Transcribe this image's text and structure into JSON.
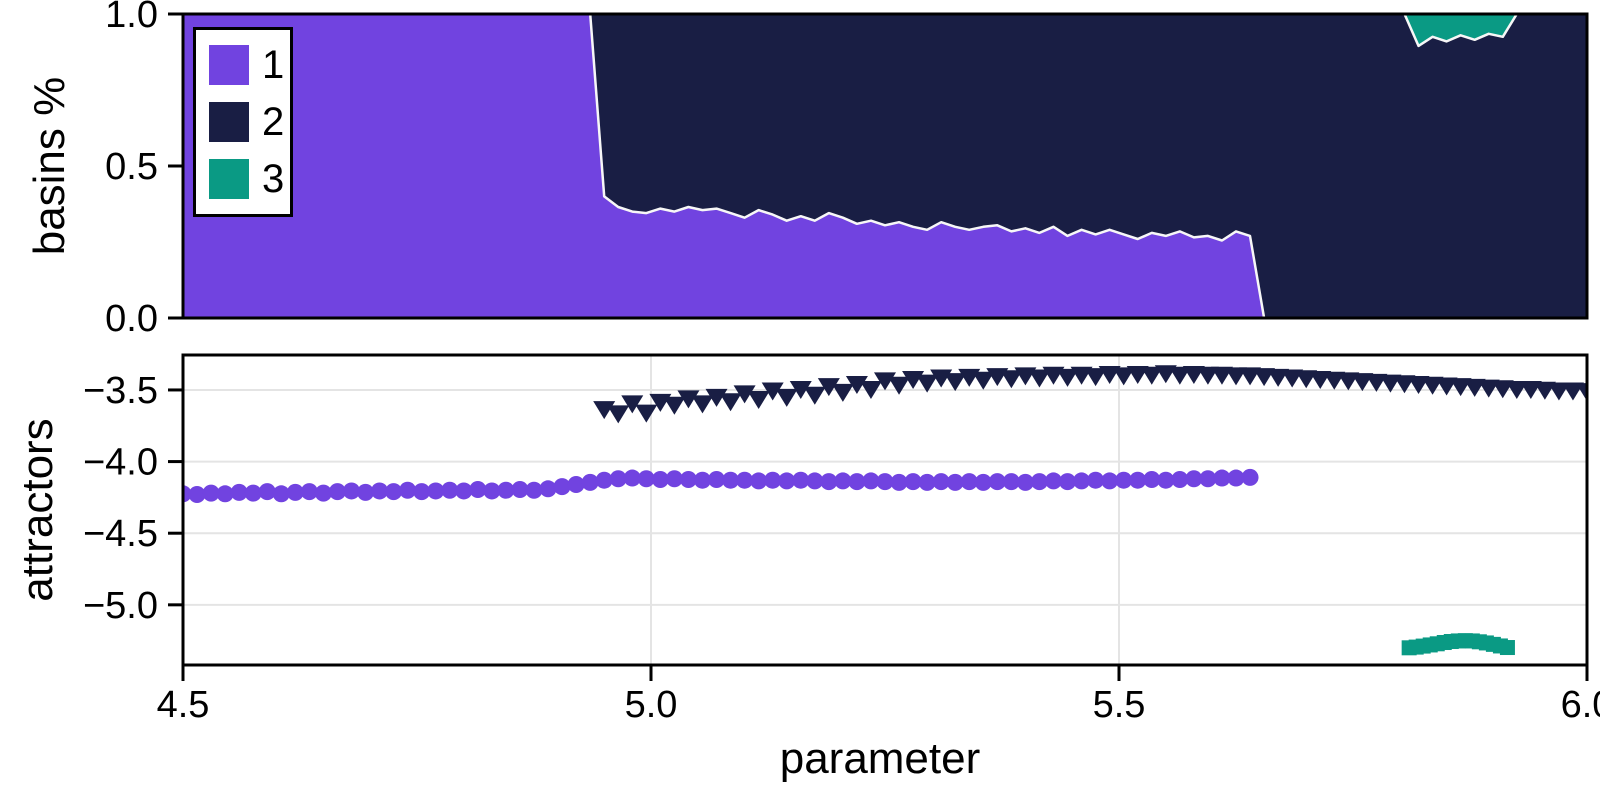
{
  "figure": {
    "background": "#ffffff"
  },
  "palette": {
    "series1": "#7143E0",
    "series2": "#191E44",
    "series3": "#0A9A84",
    "boundary_stroke": "#f7f7f7",
    "grid": "#e4e4e4",
    "spine": "#000000"
  },
  "legend": {
    "position": "top-left",
    "items": [
      {
        "label": "1",
        "color": "#7143E0"
      },
      {
        "label": "2",
        "color": "#191E44"
      },
      {
        "label": "3",
        "color": "#0A9A84"
      }
    ]
  },
  "chart_data": [
    {
      "type": "area",
      "subtype": "stacked-basin-fractions",
      "title": "",
      "xlabel": "",
      "ylabel": "basins %",
      "xlim": [
        4.5,
        6.0
      ],
      "ylim": [
        0,
        1
      ],
      "grid": false,
      "yticks": {
        "values": [
          0,
          0.5,
          1
        ],
        "labels": [
          "0.0",
          "0.5",
          "1.0"
        ]
      },
      "x_linspace": {
        "start": 4.5,
        "step": 0.015,
        "count": 101
      },
      "series": [
        {
          "name": "1",
          "color": "#7143E0",
          "anchor": "bottom",
          "fraction": [
            1,
            1,
            1,
            1,
            1,
            1,
            1,
            1,
            1,
            1,
            1,
            1,
            1,
            1,
            1,
            1,
            1,
            1,
            1,
            1,
            1,
            1,
            1,
            1,
            1,
            1,
            1,
            1,
            1,
            1,
            0.4,
            0.365,
            0.35,
            0.345,
            0.36,
            0.35,
            0.365,
            0.355,
            0.36,
            0.345,
            0.33,
            0.355,
            0.34,
            0.32,
            0.335,
            0.32,
            0.345,
            0.33,
            0.31,
            0.32,
            0.305,
            0.315,
            0.3,
            0.29,
            0.315,
            0.3,
            0.29,
            0.3,
            0.305,
            0.285,
            0.295,
            0.28,
            0.3,
            0.27,
            0.29,
            0.275,
            0.29,
            0.275,
            0.26,
            0.28,
            0.27,
            0.285,
            0.265,
            0.27,
            0.255,
            0.285,
            0.27,
            0,
            0,
            0,
            0,
            0,
            0,
            0,
            0,
            0,
            0,
            0,
            0,
            0,
            0,
            0,
            0,
            0,
            0,
            0,
            0,
            0,
            0,
            0,
            0
          ]
        },
        {
          "name": "2",
          "color": "#191E44",
          "anchor": "fill-remainder"
        },
        {
          "name": "3",
          "color": "#0A9A84",
          "anchor": "top",
          "x_linspace": {
            "start": 5.805,
            "step": 0.015,
            "count": 9
          },
          "fraction": [
            0,
            0.105,
            0.075,
            0.09,
            0.07,
            0.085,
            0.065,
            0.075,
            0
          ]
        }
      ]
    },
    {
      "type": "scatter",
      "title": "",
      "xlabel": "parameter",
      "ylabel": "attractors",
      "xlim": [
        4.5,
        6.0
      ],
      "ylim": [
        -5.42,
        -3.256
      ],
      "grid": true,
      "xticks": {
        "values": [
          4.5,
          5.0,
          5.5,
          6.0
        ],
        "labels": [
          "4.5",
          "5.0",
          "5.5",
          "6.0"
        ]
      },
      "yticks": {
        "values": [
          -3.5,
          -4.0,
          -4.5,
          -5.0
        ],
        "labels": [
          "−3.5",
          "−4.0",
          "−4.5",
          "−5.0"
        ]
      },
      "series": [
        {
          "name": "1",
          "marker": "circle",
          "color": "#7143E0",
          "x_linspace": {
            "start": 4.5,
            "step": 0.015,
            "count": 77
          },
          "y": [
            -4.225,
            -4.23,
            -4.22,
            -4.225,
            -4.215,
            -4.22,
            -4.21,
            -4.225,
            -4.215,
            -4.21,
            -4.22,
            -4.21,
            -4.205,
            -4.215,
            -4.205,
            -4.21,
            -4.2,
            -4.21,
            -4.205,
            -4.2,
            -4.205,
            -4.195,
            -4.205,
            -4.2,
            -4.195,
            -4.2,
            -4.19,
            -4.175,
            -4.16,
            -4.145,
            -4.13,
            -4.12,
            -4.115,
            -4.12,
            -4.125,
            -4.12,
            -4.125,
            -4.13,
            -4.125,
            -4.13,
            -4.13,
            -4.135,
            -4.13,
            -4.135,
            -4.13,
            -4.135,
            -4.14,
            -4.135,
            -4.14,
            -4.135,
            -4.14,
            -4.145,
            -4.14,
            -4.145,
            -4.14,
            -4.145,
            -4.14,
            -4.145,
            -4.14,
            -4.14,
            -4.145,
            -4.14,
            -4.135,
            -4.14,
            -4.135,
            -4.13,
            -4.135,
            -4.13,
            -4.13,
            -4.125,
            -4.13,
            -4.125,
            -4.12,
            -4.12,
            -4.115,
            -4.115,
            -4.11
          ]
        },
        {
          "name": "2",
          "marker": "triangle-down",
          "color": "#191E44",
          "x_linspace": {
            "start": 4.95,
            "step": 0.015,
            "count": 71
          },
          "y": [
            -3.63,
            -3.66,
            -3.59,
            -3.655,
            -3.58,
            -3.6,
            -3.555,
            -3.59,
            -3.545,
            -3.575,
            -3.52,
            -3.56,
            -3.5,
            -3.545,
            -3.49,
            -3.53,
            -3.47,
            -3.51,
            -3.455,
            -3.49,
            -3.43,
            -3.46,
            -3.42,
            -3.445,
            -3.41,
            -3.435,
            -3.405,
            -3.425,
            -3.4,
            -3.415,
            -3.395,
            -3.41,
            -3.39,
            -3.405,
            -3.39,
            -3.4,
            -3.385,
            -3.395,
            -3.385,
            -3.39,
            -3.38,
            -3.39,
            -3.385,
            -3.39,
            -3.39,
            -3.395,
            -3.395,
            -3.4,
            -3.405,
            -3.41,
            -3.415,
            -3.42,
            -3.425,
            -3.43,
            -3.435,
            -3.44,
            -3.445,
            -3.45,
            -3.455,
            -3.46,
            -3.465,
            -3.47,
            -3.475,
            -3.48,
            -3.485,
            -3.49,
            -3.49,
            -3.495,
            -3.5,
            -3.5,
            -3.505
          ]
        },
        {
          "name": "3",
          "marker": "square",
          "color": "#0A9A84",
          "x_linspace": {
            "start": 5.81,
            "step": 0.0075,
            "count": 15
          },
          "y": [
            -5.3,
            -5.295,
            -5.288,
            -5.28,
            -5.272,
            -5.263,
            -5.256,
            -5.252,
            -5.25,
            -5.252,
            -5.258,
            -5.266,
            -5.276,
            -5.287,
            -5.298
          ]
        }
      ]
    }
  ]
}
